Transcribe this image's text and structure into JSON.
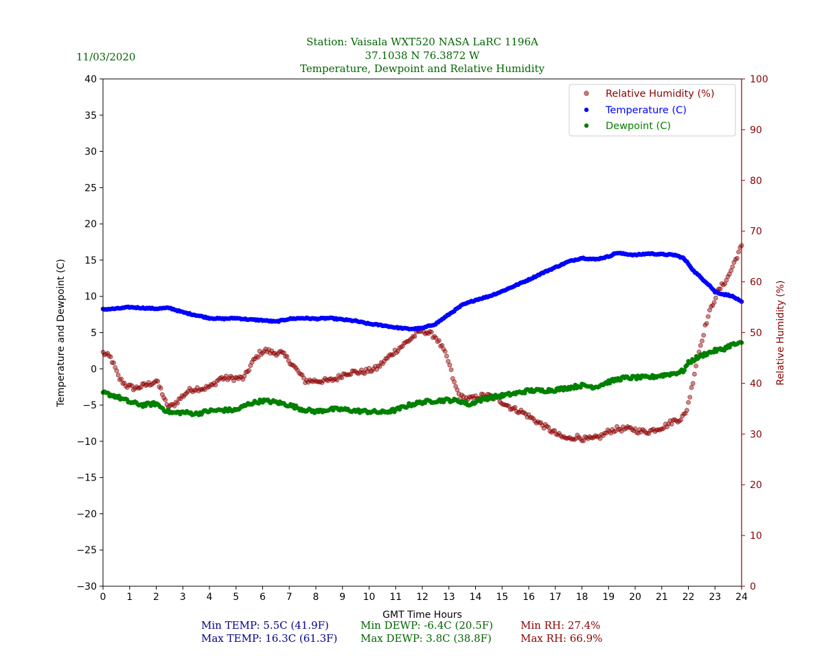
{
  "header": {
    "date": "11/03/2020",
    "title_line1": "Station:  Vaisala WXT520  NASA LaRC 1196A",
    "title_line2": "37.1038 N 76.3872 W",
    "title_line3": "Temperature, Dewpoint and Relative Humidity"
  },
  "colors": {
    "title": "#006400",
    "temperature": "#0000ff",
    "dewpoint": "#008000",
    "rh": "#8b0000",
    "stats_temp": "#00008b",
    "stats_dewp": "#006400",
    "stats_rh": "#8b0000"
  },
  "stats": {
    "min_temp": "Min TEMP: 5.5C (41.9F)",
    "max_temp": "Max TEMP: 16.3C (61.3F)",
    "min_dewp": "Min DEWP: -6.4C (20.5F)",
    "max_dewp": "Max DEWP: 3.8C (38.8F)",
    "min_rh": "Min RH: 27.4%",
    "max_rh": "Max RH: 66.9%"
  },
  "chart_data": {
    "type": "scatter",
    "xlabel": "GMT Time Hours",
    "ylabel": "Temperature and Dewpoint (C)",
    "y2label": "Relative Humidity (%)",
    "xlim": [
      0,
      24
    ],
    "ylim": [
      -30,
      40
    ],
    "y2lim": [
      0,
      100
    ],
    "x_ticks": [
      0,
      1,
      2,
      3,
      4,
      5,
      6,
      7,
      8,
      9,
      10,
      11,
      12,
      13,
      14,
      15,
      16,
      17,
      18,
      19,
      20,
      21,
      22,
      23,
      24
    ],
    "y_ticks": [
      -30,
      -25,
      -20,
      -15,
      -10,
      -5,
      0,
      5,
      10,
      15,
      20,
      25,
      30,
      35,
      40
    ],
    "y2_ticks": [
      0,
      10,
      20,
      30,
      40,
      50,
      60,
      70,
      80,
      90,
      100
    ],
    "grid": false,
    "legend_position": "top-right",
    "legend": [
      "Relative Humidity (%)",
      "Temperature (C)",
      "Dewpoint (C)"
    ],
    "series": [
      {
        "name": "Relative Humidity (%)",
        "axis": "right",
        "x": [
          0,
          0.3,
          0.6,
          0.9,
          1.2,
          1.5,
          1.8,
          2.0,
          2.2,
          2.4,
          2.6,
          2.9,
          3.2,
          3.5,
          3.8,
          4.1,
          4.4,
          4.7,
          5.0,
          5.3,
          5.6,
          5.9,
          6.1,
          6.4,
          6.7,
          7.0,
          7.3,
          7.6,
          7.9,
          8.2,
          8.5,
          8.8,
          9.1,
          9.4,
          9.7,
          10.0,
          10.3,
          10.6,
          10.9,
          11.2,
          11.5,
          11.8,
          12.0,
          12.2,
          12.5,
          12.8,
          13.0,
          13.2,
          13.4,
          13.6,
          13.9,
          14.2,
          14.5,
          14.8,
          15.1,
          15.4,
          15.7,
          16.0,
          16.3,
          16.6,
          16.9,
          17.2,
          17.5,
          17.8,
          18.1,
          18.4,
          18.7,
          19.0,
          19.3,
          19.6,
          19.9,
          20.2,
          20.5,
          20.8,
          21.1,
          21.4,
          21.7,
          21.9,
          22.1,
          22.3,
          22.5,
          22.7,
          22.9,
          23.1,
          23.3,
          23.5,
          23.7,
          23.9,
          24.0
        ],
        "values": [
          46,
          45,
          41,
          39.5,
          39,
          39.5,
          40,
          40.5,
          38.5,
          35.5,
          35.5,
          37,
          38.5,
          39,
          39,
          39.5,
          41,
          41,
          41,
          41,
          44,
          46,
          46.5,
          46,
          46,
          44.5,
          42.5,
          40.5,
          40.5,
          40.5,
          40.5,
          41,
          42,
          42.2,
          42.2,
          42.5,
          43,
          44.5,
          46,
          47.2,
          48.5,
          49.8,
          50.5,
          50,
          49.2,
          46.5,
          44,
          40,
          37.5,
          37,
          37,
          37.5,
          37.5,
          37,
          36,
          35,
          34.5,
          33.5,
          32.5,
          31.5,
          30.5,
          29.5,
          29,
          29.5,
          29,
          29,
          29.5,
          30.5,
          31,
          31,
          31,
          30.5,
          30.5,
          31,
          31.5,
          32.5,
          33,
          34,
          38.5,
          44,
          48.5,
          52.5,
          55.5,
          58,
          59.5,
          61,
          63.5,
          66,
          66.9
        ]
      },
      {
        "name": "Temperature (C)",
        "axis": "left",
        "x": [
          0,
          0.5,
          1.0,
          1.5,
          2.0,
          2.5,
          3.0,
          3.5,
          4.0,
          4.5,
          5.0,
          5.5,
          6.0,
          6.5,
          7.0,
          7.5,
          8.0,
          8.5,
          9.0,
          9.5,
          10.0,
          10.5,
          11.0,
          11.5,
          12.0,
          12.5,
          13.0,
          13.5,
          14.0,
          14.5,
          15.0,
          15.5,
          16.0,
          16.5,
          17.0,
          17.5,
          18.0,
          18.5,
          19.0,
          19.3,
          19.5,
          20.0,
          20.5,
          21.0,
          21.5,
          21.8,
          22.0,
          22.2,
          22.5,
          22.8,
          23.0,
          23.3,
          23.6,
          23.8,
          24.0
        ],
        "values": [
          8.2,
          8.3,
          8.5,
          8.4,
          8.3,
          8.4,
          7.8,
          7.4,
          7.0,
          6.9,
          7.0,
          6.8,
          6.7,
          6.5,
          6.9,
          7.0,
          6.9,
          7.0,
          6.8,
          6.6,
          6.2,
          6.0,
          5.7,
          5.5,
          5.6,
          6.2,
          7.5,
          8.8,
          9.5,
          10.0,
          10.7,
          11.5,
          12.3,
          13.2,
          14.0,
          14.8,
          15.3,
          15.1,
          15.5,
          16.0,
          15.9,
          15.7,
          15.9,
          15.8,
          15.7,
          15.3,
          14.5,
          13.5,
          12.5,
          11.5,
          10.6,
          10.3,
          10.1,
          9.7,
          9.2
        ]
      },
      {
        "name": "Dewpoint (C)",
        "axis": "left",
        "x": [
          0,
          0.5,
          1.0,
          1.5,
          2.0,
          2.3,
          2.6,
          3.0,
          3.5,
          4.0,
          4.5,
          5.0,
          5.5,
          6.0,
          6.5,
          7.0,
          7.5,
          8.0,
          8.5,
          9.0,
          9.5,
          10.0,
          10.5,
          11.0,
          11.5,
          12.0,
          12.5,
          13.0,
          13.5,
          13.8,
          14.0,
          14.5,
          15.0,
          15.5,
          16.0,
          16.5,
          17.0,
          17.5,
          18.0,
          18.5,
          19.0,
          19.5,
          20.0,
          20.5,
          21.0,
          21.5,
          21.8,
          22.0,
          22.3,
          22.6,
          23.0,
          23.3,
          23.6,
          24.0
        ],
        "values": [
          -3.3,
          -3.8,
          -4.6,
          -5.0,
          -4.8,
          -5.6,
          -6.1,
          -6.0,
          -6.2,
          -5.8,
          -5.7,
          -5.7,
          -4.8,
          -4.4,
          -4.6,
          -5.0,
          -5.6,
          -5.9,
          -5.6,
          -5.6,
          -5.8,
          -5.9,
          -6.0,
          -5.7,
          -5.0,
          -4.6,
          -4.4,
          -4.3,
          -4.5,
          -5.0,
          -4.5,
          -4.0,
          -3.7,
          -3.4,
          -3.0,
          -3.0,
          -2.9,
          -2.6,
          -2.3,
          -2.5,
          -1.8,
          -1.3,
          -1.2,
          -1.2,
          -0.9,
          -0.6,
          -0.3,
          0.8,
          1.5,
          2.0,
          2.5,
          2.7,
          3.3,
          3.5
        ]
      }
    ]
  }
}
